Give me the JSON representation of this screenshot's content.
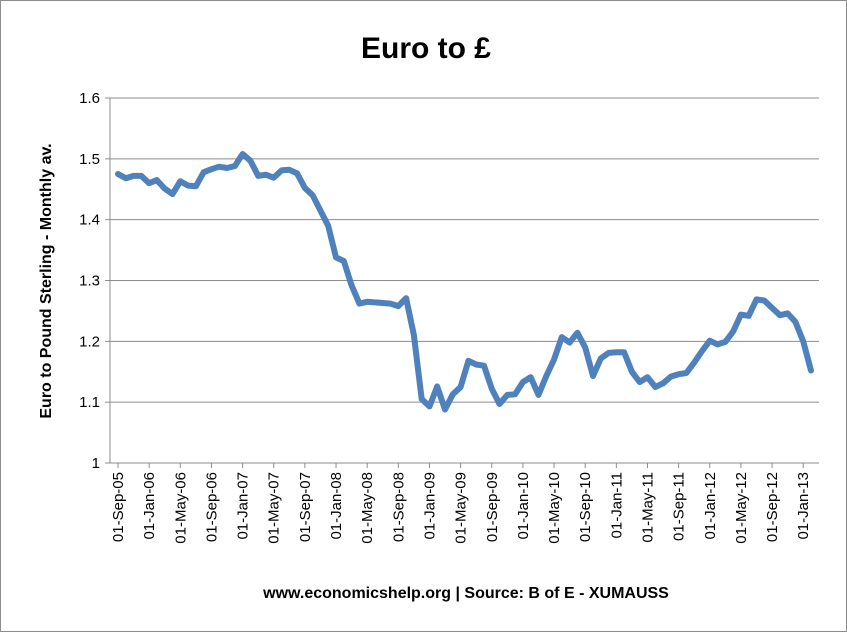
{
  "chart_data": {
    "type": "line",
    "title": "Euro to £",
    "xlabel": "www.economicshelp.org | Source: B of E  - XUMAUSS",
    "ylabel": "Euro  to Pound Sterling - Monthly av.",
    "ylim": [
      1,
      1.6
    ],
    "yticks": [
      "1",
      "1.1",
      "1.2",
      "1.3",
      "1.4",
      "1.5",
      "1.6"
    ],
    "grid": true,
    "legend": "none",
    "line_color": "#4f81bd",
    "x": [
      "01-Sep-05",
      "01-Oct-05",
      "01-Nov-05",
      "01-Dec-05",
      "01-Jan-06",
      "01-Feb-06",
      "01-Mar-06",
      "01-Apr-06",
      "01-May-06",
      "01-Jun-06",
      "01-Jul-06",
      "01-Aug-06",
      "01-Sep-06",
      "01-Oct-06",
      "01-Nov-06",
      "01-Dec-06",
      "01-Jan-07",
      "01-Feb-07",
      "01-Mar-07",
      "01-Apr-07",
      "01-May-07",
      "01-Jun-07",
      "01-Jul-07",
      "01-Aug-07",
      "01-Sep-07",
      "01-Oct-07",
      "01-Nov-07",
      "01-Dec-07",
      "01-Jan-08",
      "01-Feb-08",
      "01-Mar-08",
      "01-Apr-08",
      "01-May-08",
      "01-Jun-08",
      "01-Jul-08",
      "01-Aug-08",
      "01-Sep-08",
      "01-Oct-08",
      "01-Nov-08",
      "01-Dec-08",
      "01-Jan-09",
      "01-Feb-09",
      "01-Mar-09",
      "01-Apr-09",
      "01-May-09",
      "01-Jun-09",
      "01-Jul-09",
      "01-Aug-09",
      "01-Sep-09",
      "01-Oct-09",
      "01-Nov-09",
      "01-Dec-09",
      "01-Jan-10",
      "01-Feb-10",
      "01-Mar-10",
      "01-Apr-10",
      "01-May-10",
      "01-Jun-10",
      "01-Jul-10",
      "01-Aug-10",
      "01-Sep-10",
      "01-Oct-10",
      "01-Nov-10",
      "01-Dec-10",
      "01-Jan-11",
      "01-Feb-11",
      "01-Mar-11",
      "01-Apr-11",
      "01-May-11",
      "01-Jun-11",
      "01-Jul-11",
      "01-Aug-11",
      "01-Sep-11",
      "01-Oct-11",
      "01-Nov-11",
      "01-Dec-11",
      "01-Jan-12",
      "01-Feb-12",
      "01-Mar-12",
      "01-Apr-12",
      "01-May-12",
      "01-Jun-12",
      "01-Jul-12",
      "01-Aug-12",
      "01-Sep-12",
      "01-Oct-12",
      "01-Nov-12",
      "01-Dec-12",
      "01-Jan-13",
      "01-Feb-13"
    ],
    "xticks": [
      "01-Sep-05",
      "01-Jan-06",
      "01-May-06",
      "01-Sep-06",
      "01-Jan-07",
      "01-May-07",
      "01-Sep-07",
      "01-Jan-08",
      "01-May-08",
      "01-Sep-08",
      "01-Jan-09",
      "01-May-09",
      "01-Sep-09",
      "01-Jan-10",
      "01-May-10",
      "01-Sep-10",
      "01-Jan-11",
      "01-May-11",
      "01-Sep-11",
      "01-Jan-12",
      "01-May-12",
      "01-Sep-12",
      "01-Jan-13"
    ],
    "series": [
      {
        "values": [
          1.475,
          1.468,
          1.472,
          1.472,
          1.46,
          1.465,
          1.451,
          1.442,
          1.463,
          1.456,
          1.455,
          1.478,
          1.483,
          1.487,
          1.485,
          1.488,
          1.508,
          1.497,
          1.472,
          1.474,
          1.469,
          1.481,
          1.482,
          1.476,
          1.452,
          1.44,
          1.415,
          1.39,
          1.338,
          1.332,
          1.292,
          1.262,
          1.265,
          1.264,
          1.263,
          1.262,
          1.258,
          1.271,
          1.21,
          1.105,
          1.093,
          1.126,
          1.088,
          1.113,
          1.125,
          1.168,
          1.162,
          1.16,
          1.122,
          1.097,
          1.112,
          1.113,
          1.133,
          1.141,
          1.112,
          1.143,
          1.17,
          1.207,
          1.198,
          1.214,
          1.19,
          1.143,
          1.172,
          1.181,
          1.182,
          1.182,
          1.15,
          1.133,
          1.141,
          1.125,
          1.131,
          1.142,
          1.146,
          1.148,
          1.165,
          1.184,
          1.201,
          1.195,
          1.199,
          1.216,
          1.244,
          1.242,
          1.269,
          1.267,
          1.255,
          1.243,
          1.246,
          1.232,
          1.2,
          1.152
        ]
      }
    ]
  }
}
